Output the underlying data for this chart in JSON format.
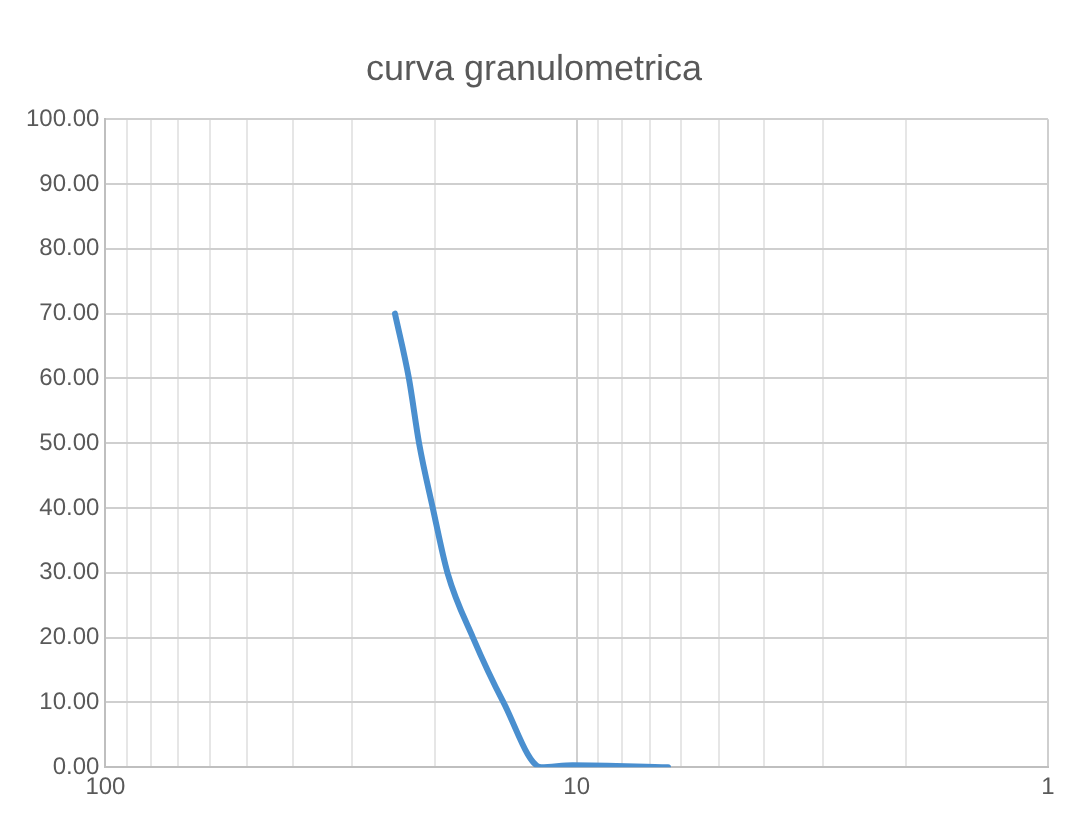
{
  "chart_data": {
    "type": "line",
    "title": "curva granulometrica",
    "series": [
      {
        "color": "#4a8fcf",
        "x": [
          24.3,
          22.7,
          21.6,
          20.2,
          18.8,
          16.6,
          14.3,
          11.9,
          10.2,
          6.4
        ],
        "values": [
          70,
          60,
          50,
          40,
          30,
          20,
          10,
          0,
          0.3,
          0
        ]
      }
    ],
    "xlim": [
      100,
      1
    ],
    "log": "x",
    "xticks": [
      100,
      {
        "value": 90,
        "label": null
      },
      {
        "value": 80,
        "label": null
      },
      {
        "value": 70,
        "label": null
      },
      {
        "value": 60,
        "label": null
      },
      {
        "value": 50,
        "label": null
      },
      {
        "value": 40,
        "label": null
      },
      {
        "value": 30,
        "label": null
      },
      {
        "value": 20,
        "label": null
      },
      10,
      {
        "value": 9,
        "label": null
      },
      {
        "value": 8,
        "label": null
      },
      {
        "value": 7,
        "label": null
      },
      {
        "value": 6,
        "label": null
      },
      {
        "value": 5,
        "label": null
      },
      {
        "value": 4,
        "label": null
      },
      {
        "value": 3,
        "label": null
      },
      {
        "value": 2,
        "label": null
      },
      1
    ],
    "ylim": [
      0,
      100
    ],
    "yticks": [
      {
        "value": 0,
        "label": "0.00"
      },
      {
        "value": 10,
        "label": "10.00"
      },
      {
        "value": 20,
        "label": "20.00"
      },
      {
        "value": 30,
        "label": "30.00"
      },
      {
        "value": 40,
        "label": "40.00"
      },
      {
        "value": 50,
        "label": "50.00"
      },
      {
        "value": 60,
        "label": "60.00"
      },
      {
        "value": 70,
        "label": "70.00"
      },
      {
        "value": 80,
        "label": "80.00"
      },
      {
        "value": 90,
        "label": "90.00"
      },
      {
        "value": 100,
        "label": "100.00"
      }
    ],
    "grid": true,
    "legend": false,
    "marker": "none",
    "line_style": "solid"
  }
}
